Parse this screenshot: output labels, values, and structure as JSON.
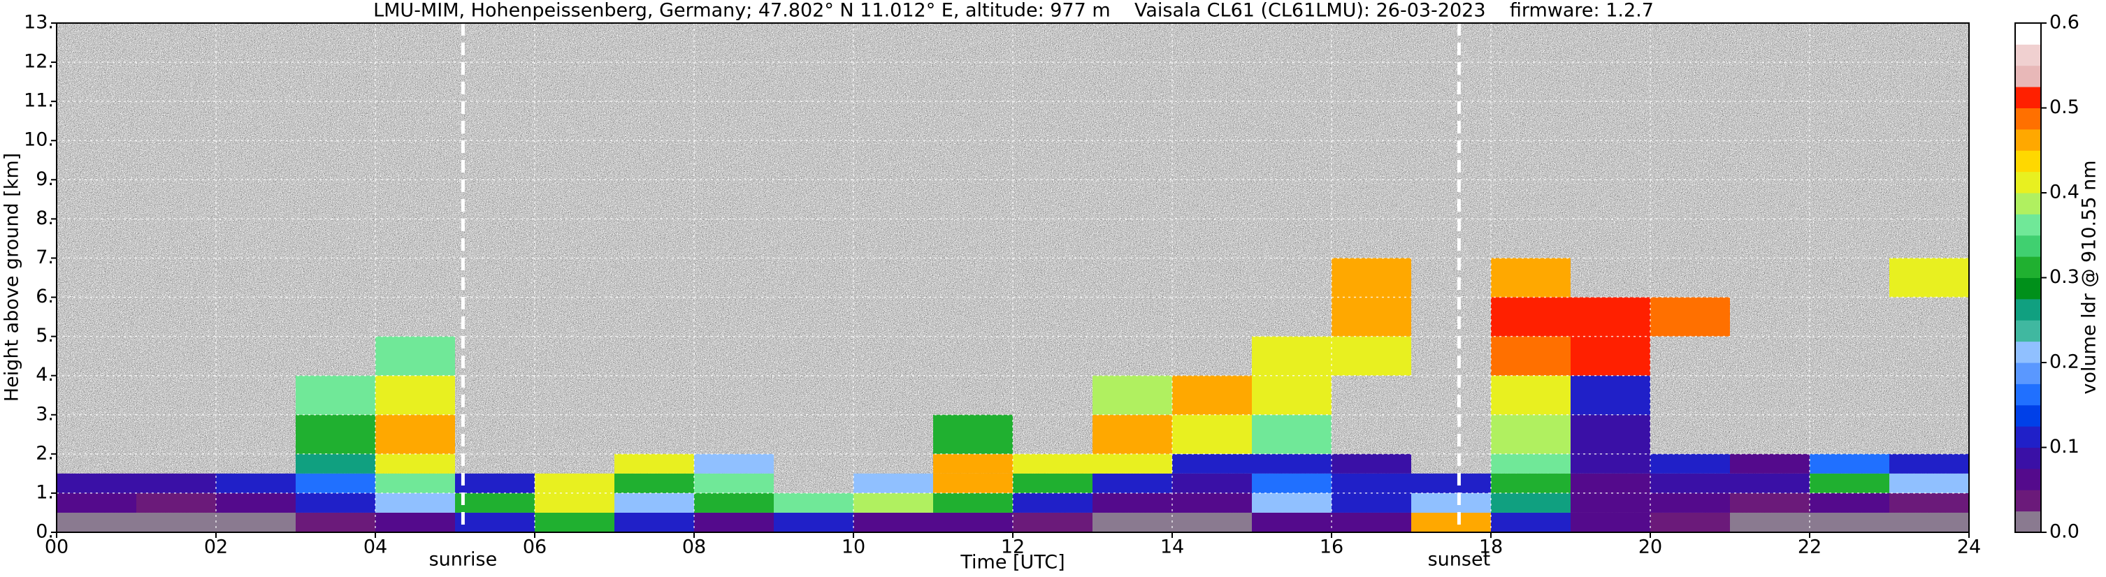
{
  "chart_data": {
    "type": "heatmap",
    "title": "LMU-MIM, Hohenpeissenberg, Germany; 47.802° N 11.012° E, altitude: 977 m    Vaisala CL61 (CL61LMU): 26-03-2023    firmware: 1.2.7",
    "x_label": "Time [UTC]",
    "y_label": "Height above ground [km]",
    "colorbar_label": "volume ldr @ 910.55 nm",
    "xlim": [
      0,
      24
    ],
    "xticks": [
      {
        "value": 0,
        "label": "00"
      },
      {
        "value": 2,
        "label": "02"
      },
      {
        "value": 4,
        "label": "04"
      },
      {
        "value": 6,
        "label": "06"
      },
      {
        "value": 8,
        "label": "08"
      },
      10,
      12,
      14,
      16,
      18,
      20,
      22,
      24
    ],
    "ylim": [
      0,
      13
    ],
    "yticks": [
      {
        "value": 0,
        "label": "0."
      },
      {
        "value": 1,
        "label": "1."
      },
      {
        "value": 2,
        "label": "2."
      },
      {
        "value": 3,
        "label": "3."
      },
      {
        "value": 4,
        "label": "4."
      },
      {
        "value": 5,
        "label": "5."
      },
      {
        "value": 6,
        "label": "6."
      },
      {
        "value": 7,
        "label": "7."
      },
      {
        "value": 8,
        "label": "8."
      },
      {
        "value": 9,
        "label": "9."
      },
      {
        "value": 10,
        "label": "10."
      },
      {
        "value": 11,
        "label": "11."
      },
      {
        "value": 12,
        "label": "12."
      },
      {
        "value": 13,
        "label": "13."
      }
    ],
    "zlim": [
      0,
      0.6
    ],
    "zticks": [
      {
        "value": 0,
        "label": "0.0"
      },
      0.1,
      0.2,
      0.3,
      0.4,
      0.5,
      0.6
    ],
    "colors": [
      "#8a7a90",
      "#6b1a7a",
      "#540a8c",
      "#3a10a6",
      "#2020c8",
      "#0040e8",
      "#2070ff",
      "#5a98ff",
      "#90c0ff",
      "#40b8a0",
      "#10a080",
      "#00901a",
      "#20b030",
      "#40d070",
      "#70e898",
      "#b0f060",
      "#e8f020",
      "#ffd800",
      "#ffa800",
      "#ff7000",
      "#ff2000",
      "#e8b8b8",
      "#f0d0d0",
      "#ffffff"
    ],
    "grid": true,
    "annotations": [
      {
        "text": "sunrise",
        "x": 5.1
      },
      {
        "text": "sunset",
        "x": 17.6
      }
    ],
    "x_bins": [
      0,
      1,
      2,
      3,
      4,
      5,
      6,
      7,
      8,
      9,
      10,
      11,
      12,
      13,
      14,
      15,
      16,
      17,
      18,
      19,
      20,
      21,
      22,
      23,
      24
    ],
    "y_bins": [
      0,
      0.5,
      1,
      1.5,
      2,
      3,
      4,
      5,
      6,
      7,
      8,
      13
    ],
    "z": [
      [
        0.02,
        0.05,
        0.08,
        null,
        null,
        null,
        null,
        null,
        null,
        null,
        null
      ],
      [
        0.02,
        0.04,
        0.08,
        null,
        null,
        null,
        null,
        null,
        null,
        null,
        null
      ],
      [
        0.02,
        0.05,
        0.1,
        null,
        null,
        null,
        null,
        null,
        null,
        null,
        null
      ],
      [
        0.03,
        0.1,
        0.15,
        0.25,
        0.3,
        0.35,
        null,
        null,
        null,
        null,
        null
      ],
      [
        0.05,
        0.2,
        0.35,
        0.4,
        0.45,
        0.4,
        0.35,
        null,
        null,
        null,
        null
      ],
      [
        0.1,
        0.3,
        0.1,
        null,
        null,
        null,
        null,
        null,
        null,
        null,
        null
      ],
      [
        0.3,
        0.4,
        0.42,
        null,
        null,
        null,
        null,
        null,
        null,
        null,
        null
      ],
      [
        0.1,
        0.2,
        0.3,
        0.42,
        null,
        null,
        null,
        null,
        null,
        null,
        null
      ],
      [
        0.05,
        0.3,
        0.35,
        0.2,
        null,
        null,
        null,
        null,
        null,
        null,
        null
      ],
      [
        0.1,
        0.35,
        null,
        null,
        null,
        null,
        null,
        null,
        null,
        null,
        null
      ],
      [
        0.05,
        0.38,
        0.2,
        null,
        null,
        null,
        null,
        null,
        null,
        null,
        null
      ],
      [
        0.05,
        0.3,
        0.45,
        0.45,
        0.3,
        null,
        null,
        null,
        null,
        null,
        null
      ],
      [
        0.03,
        0.1,
        0.3,
        0.4,
        null,
        null,
        null,
        null,
        null,
        null,
        null
      ],
      [
        0.02,
        0.05,
        0.1,
        0.4,
        0.45,
        0.38,
        null,
        null,
        null,
        null,
        null
      ],
      [
        0.02,
        0.05,
        0.08,
        0.1,
        0.4,
        0.45,
        null,
        null,
        null,
        null,
        null
      ],
      [
        0.05,
        0.2,
        0.15,
        0.1,
        0.35,
        0.4,
        0.42,
        null,
        null,
        null,
        null
      ],
      [
        0.05,
        0.1,
        0.1,
        0.08,
        null,
        null,
        0.4,
        0.45,
        0.45,
        null,
        null
      ],
      [
        0.45,
        0.2,
        0.1,
        null,
        null,
        null,
        null,
        null,
        null,
        null,
        null
      ],
      [
        0.1,
        0.25,
        0.3,
        0.35,
        0.38,
        0.42,
        0.48,
        0.5,
        0.45,
        null,
        null
      ],
      [
        0.05,
        0.06,
        0.05,
        0.08,
        0.08,
        0.1,
        0.5,
        0.5,
        null,
        null,
        null
      ],
      [
        0.03,
        0.05,
        0.08,
        0.1,
        null,
        null,
        null,
        0.48,
        null,
        null,
        null
      ],
      [
        0.02,
        0.03,
        0.08,
        0.05,
        null,
        null,
        null,
        null,
        null,
        null,
        null
      ],
      [
        0.02,
        0.05,
        0.3,
        0.15,
        null,
        null,
        null,
        null,
        null,
        null,
        null
      ],
      [
        0.02,
        0.04,
        0.2,
        0.1,
        null,
        null,
        null,
        null,
        0.4,
        null,
        null
      ]
    ]
  }
}
